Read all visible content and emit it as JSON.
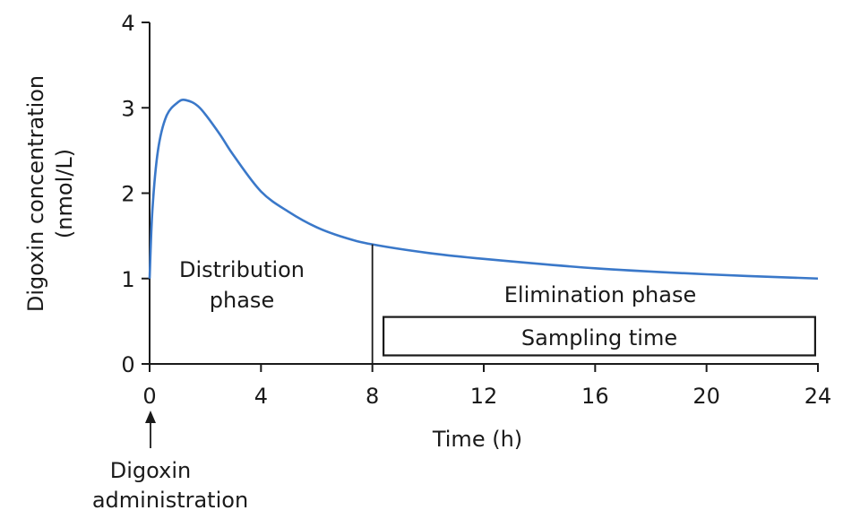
{
  "chart_data": {
    "type": "line",
    "title": "",
    "xlabel": "Time (h)",
    "ylabel_line1": "Digoxin concentration",
    "ylabel_line2": "(nmol/L)",
    "xlim": [
      0,
      24
    ],
    "ylim": [
      0,
      4
    ],
    "xticks": [
      0,
      4,
      8,
      12,
      16,
      20,
      24
    ],
    "yticks": [
      0,
      1,
      2,
      3,
      4
    ],
    "grid": false,
    "line_color": "#3a78c9",
    "series": [
      {
        "name": "Digoxin concentration",
        "x": [
          0,
          0.1,
          0.3,
          0.6,
          1.0,
          1.3,
          1.8,
          2.5,
          3,
          4,
          5,
          6,
          7,
          8,
          10,
          12,
          16,
          20,
          24
        ],
        "y": [
          1.0,
          1.8,
          2.5,
          2.9,
          3.06,
          3.09,
          3.0,
          2.7,
          2.45,
          2.02,
          1.78,
          1.6,
          1.48,
          1.4,
          1.3,
          1.23,
          1.12,
          1.05,
          1.0
        ]
      }
    ],
    "annotations": {
      "distribution_line1": "Distribution",
      "distribution_line2": "phase",
      "elimination": "Elimination phase",
      "phase_divider_x": 8,
      "sampling_label": "Sampling time",
      "sampling_range_x": [
        8.4,
        23.9
      ],
      "sampling_range_y": [
        0.1,
        0.55
      ],
      "arrow_label_line1": "Digoxin",
      "arrow_label_line2": "administration"
    }
  }
}
